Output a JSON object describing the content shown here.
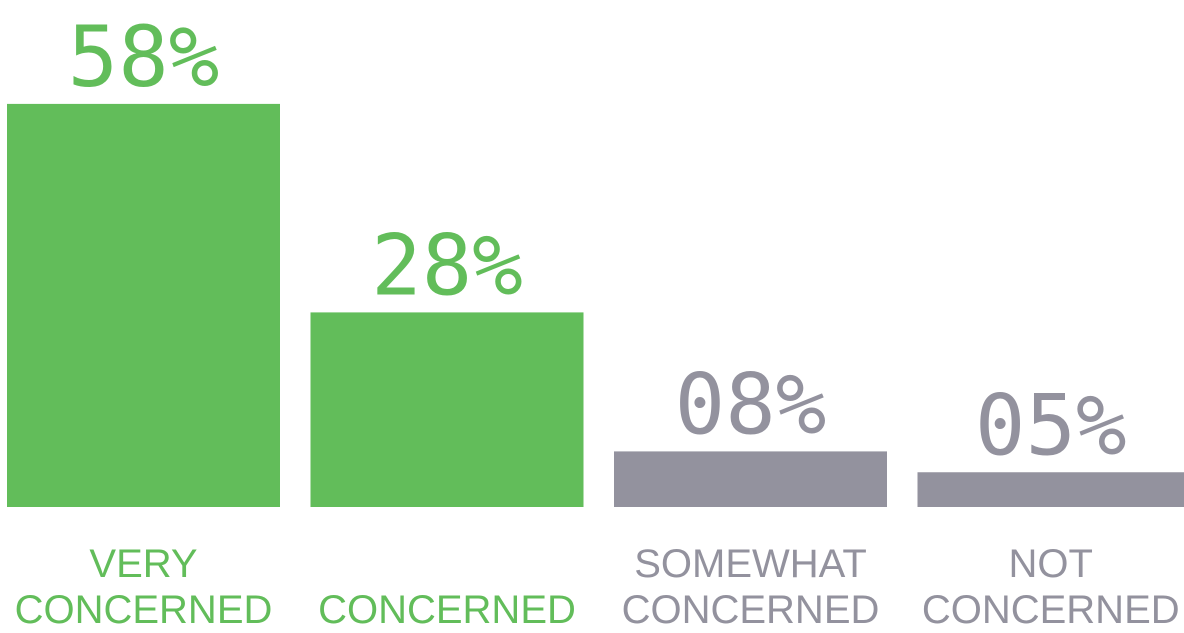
{
  "chart_data": {
    "type": "bar",
    "categories": [
      "VERY CONCERNED",
      "CONCERNED",
      "SOMEWHAT CONCERNED",
      "NOT CONCERNED"
    ],
    "values": [
      58,
      28,
      8,
      5
    ],
    "value_labels": [
      "58%",
      "28%",
      "08%",
      "05%"
    ],
    "colors": [
      "#62bd5a",
      "#62bd5a",
      "#93929e",
      "#93929e"
    ]
  }
}
